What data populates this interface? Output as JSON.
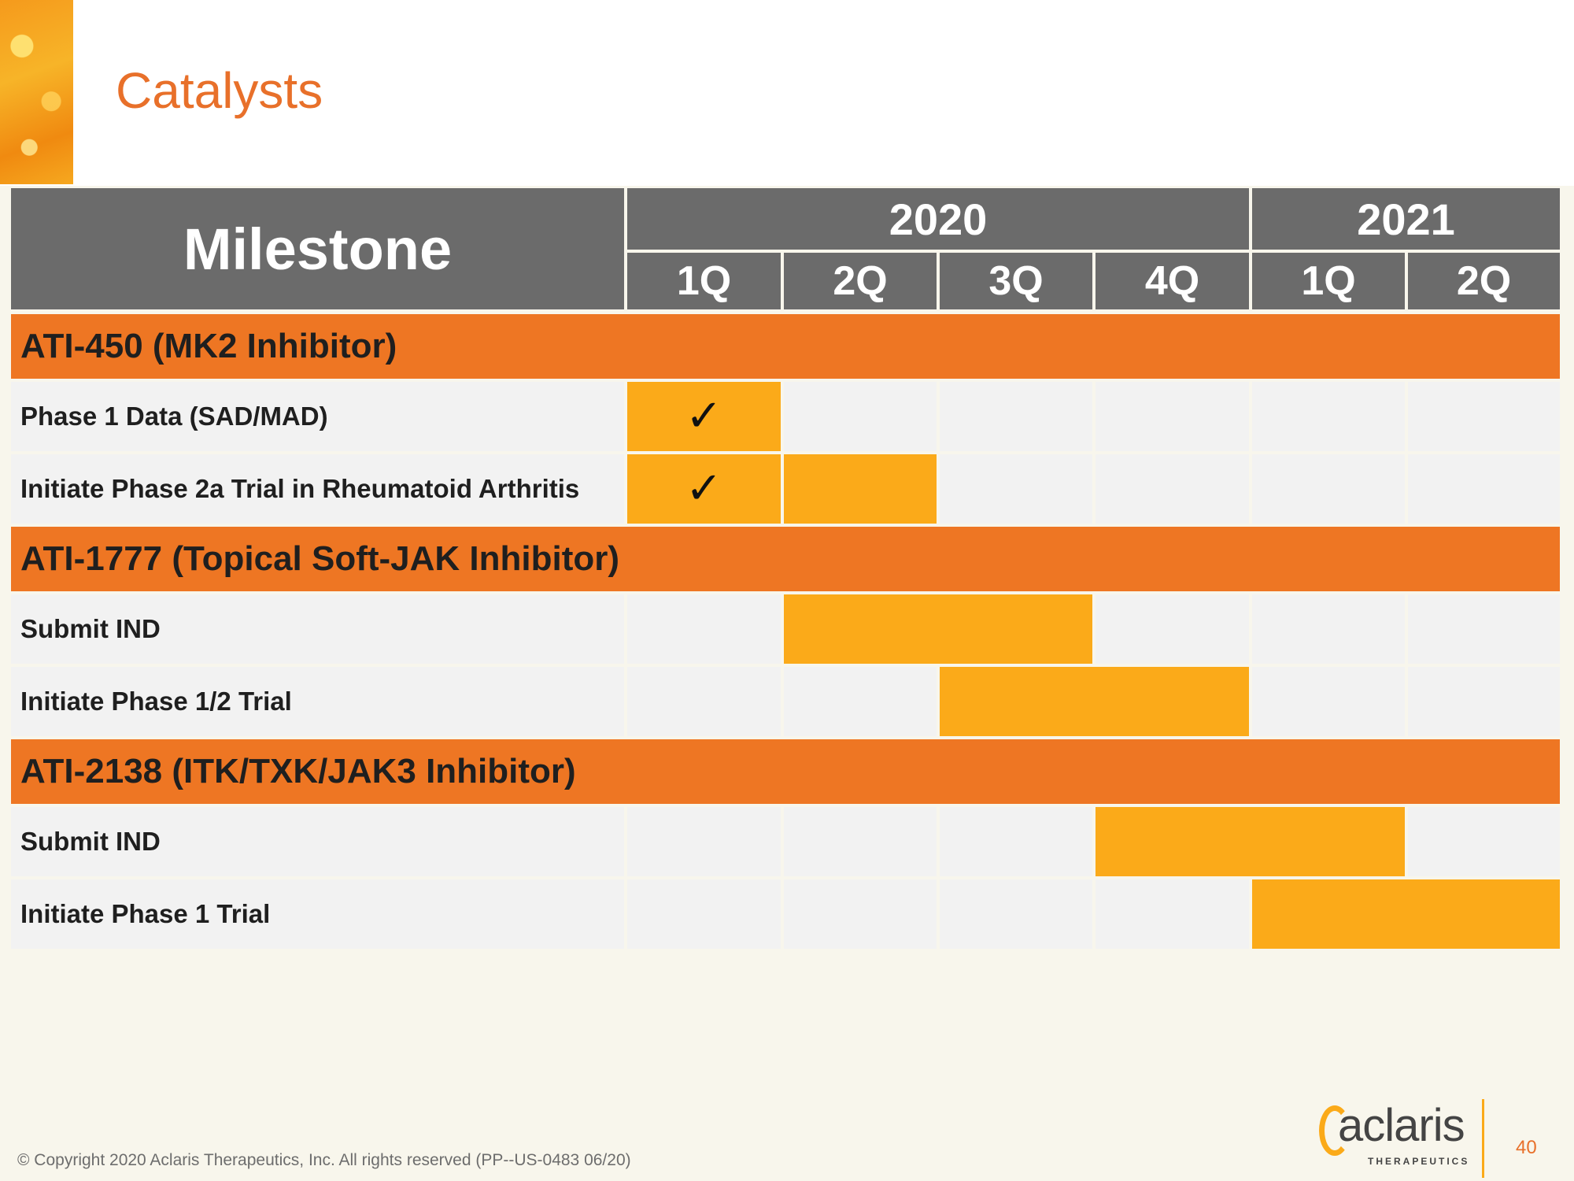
{
  "title": "Catalysts",
  "table": {
    "milestone_header": "Milestone",
    "years": [
      "2020",
      "2021"
    ],
    "quarters": [
      "1Q",
      "2Q",
      "3Q",
      "4Q",
      "1Q",
      "2Q"
    ],
    "check_mark": "✓",
    "groups": [
      {
        "name": "ATI-450 (MK2 Inhibitor)",
        "items": [
          {
            "label": "Phase 1 Data (SAD/MAD)",
            "active_quarters": [
              "2020 1Q"
            ],
            "completed": true
          },
          {
            "label": "Initiate Phase 2a Trial in Rheumatoid Arthritis",
            "active_quarters": [
              "2020 1Q",
              "2020 2Q"
            ],
            "completed": true
          }
        ]
      },
      {
        "name": "ATI-1777 (Topical Soft-JAK Inhibitor)",
        "items": [
          {
            "label": "Submit IND",
            "active_quarters": [
              "2020 2Q",
              "2020 3Q"
            ],
            "completed": false
          },
          {
            "label": "Initiate Phase 1/2 Trial",
            "active_quarters": [
              "2020 3Q",
              "2020 4Q"
            ],
            "completed": false
          }
        ]
      },
      {
        "name": "ATI-2138 (ITK/TXK/JAK3 Inhibitor)",
        "items": [
          {
            "label": "Submit IND",
            "active_quarters": [
              "2020 4Q",
              "2021 1Q"
            ],
            "completed": false
          },
          {
            "label": "Initiate Phase 1 Trial",
            "active_quarters": [
              "2021 1Q",
              "2021 2Q"
            ],
            "completed": false
          }
        ]
      }
    ]
  },
  "footer": {
    "copyright": "© Copyright 2020 Aclaris Therapeutics, Inc. All rights reserved (PP--US-0483 06/20)",
    "logo_text": "aclaris",
    "logo_subtext": "THERAPEUTICS",
    "page_number": "40"
  },
  "colors": {
    "title": "#e8702a",
    "header_bg": "#6b6b6b",
    "section_bg": "#ee7623",
    "bar": "#fbaa19",
    "row_bg": "#f2f2f2"
  }
}
